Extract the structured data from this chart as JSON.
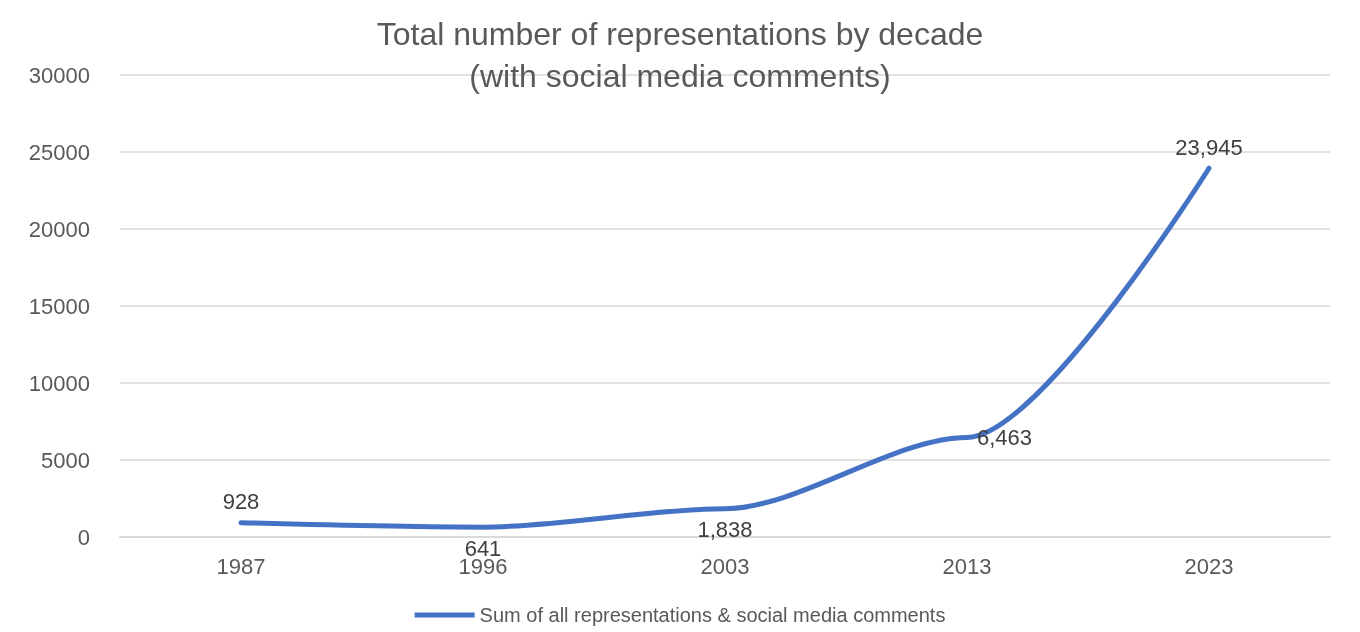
{
  "chart_data": {
    "type": "line",
    "title": "Total number of representations by decade\n(with social media comments)",
    "categories": [
      "1987",
      "1996",
      "2003",
      "2013",
      "2023"
    ],
    "series": [
      {
        "name": "Sum of all representations & social media comments",
        "color": "#4472c4",
        "values": [
          928,
          641,
          1838,
          6463,
          23945
        ],
        "value_labels": [
          "928",
          "641",
          "1,838",
          "6,463",
          "23,945"
        ]
      }
    ],
    "ylim": [
      0,
      30000
    ],
    "yticks": [
      0,
      5000,
      10000,
      15000,
      20000,
      25000,
      30000
    ],
    "grid": "y",
    "legend": "bottom",
    "marker": "none",
    "line_style": "solid"
  }
}
